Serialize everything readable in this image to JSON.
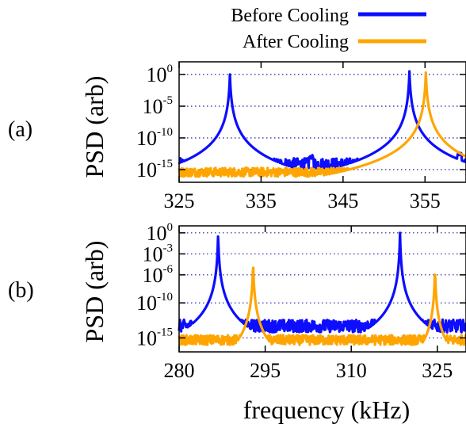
{
  "chart_data": {
    "type": "line",
    "legend": {
      "placement": "top",
      "entries": [
        {
          "label": "Before Cooling",
          "color": "#0d0dff"
        },
        {
          "label": "After Cooling",
          "color": "#ffa500"
        }
      ]
    },
    "xlabel": "frequency (kHz)",
    "y_scale": "log",
    "grid": "horizontal dotted at major y ticks",
    "panels": [
      {
        "panel_label": "(a)",
        "ylabel": "PSD (arb)",
        "xlim": [
          325,
          360
        ],
        "ylim_exp": [
          -17,
          2
        ],
        "xticks": [
          {
            "value": 325,
            "label": "325"
          },
          {
            "value": 335,
            "label": "335"
          },
          {
            "value": 345,
            "label": "345"
          },
          {
            "value": 355,
            "label": "355"
          }
        ],
        "yticks": [
          {
            "exp": 0,
            "base": "10",
            "sup": "0"
          },
          {
            "exp": -5,
            "base": "10",
            "sup": "-5"
          },
          {
            "exp": -10,
            "base": "10",
            "sup": "-10"
          },
          {
            "exp": -15,
            "base": "10",
            "sup": "-15"
          }
        ],
        "series": [
          {
            "color": "#0d0dff",
            "floor_exp": -14.1,
            "noise": 0.9,
            "peaks": [
              {
                "x": 331.2,
                "exp": 0
              },
              {
                "x": 353.1,
                "exp": 0.5
              }
            ],
            "bumps": [
              {
                "x": 327.5,
                "exp": -12.8
              },
              {
                "x": 341.1,
                "exp": -13
              },
              {
                "x": 359.2,
                "exp": -12.5
              }
            ]
          },
          {
            "color": "#ffa500",
            "floor_exp": -15.4,
            "noise": 0.7,
            "peaks": [
              {
                "x": 355.1,
                "exp": 0.3
              }
            ],
            "bumps": []
          }
        ]
      },
      {
        "panel_label": "(b)",
        "ylabel": "PSD (arb)",
        "xlim": [
          280,
          330
        ],
        "ylim_exp": [
          -17,
          1
        ],
        "xticks": [
          {
            "value": 280,
            "label": "280"
          },
          {
            "value": 295,
            "label": "295"
          },
          {
            "value": 310,
            "label": "310"
          },
          {
            "value": 325,
            "label": "325"
          }
        ],
        "yticks": [
          {
            "exp": 0,
            "base": "10",
            "sup": "0"
          },
          {
            "exp": -3,
            "base": "10",
            "sup": "-3"
          },
          {
            "exp": -6,
            "base": "10",
            "sup": "-6"
          },
          {
            "exp": -10,
            "base": "10",
            "sup": "-10"
          },
          {
            "exp": -15,
            "base": "10",
            "sup": "-15"
          }
        ],
        "series": [
          {
            "color": "#0d0dff",
            "floor_exp": -13.3,
            "noise": 0.9,
            "peaks": [
              {
                "x": 286.8,
                "exp": 0
              },
              {
                "x": 318.5,
                "exp": 0
              }
            ],
            "bumps": []
          },
          {
            "color": "#ffa500",
            "floor_exp": -15.3,
            "noise": 0.7,
            "peaks": [
              {
                "x": 292.9,
                "exp": -4
              },
              {
                "x": 324.6,
                "exp": -5
              }
            ],
            "bumps": []
          }
        ]
      }
    ]
  }
}
